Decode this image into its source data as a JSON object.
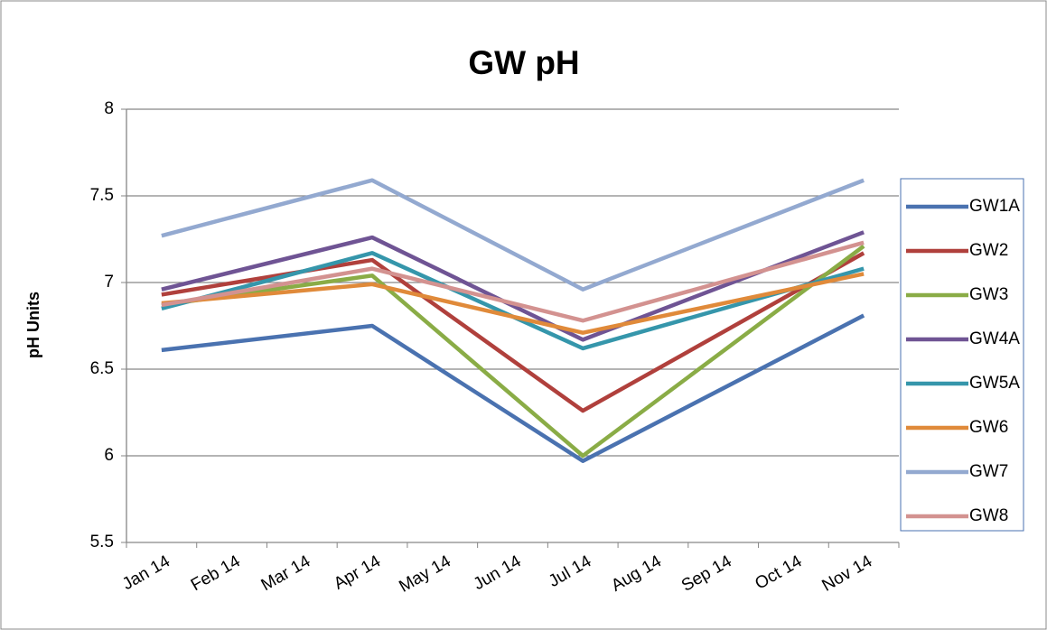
{
  "chart_data": {
    "type": "line",
    "title": "GW pH",
    "y_label": "pH Units",
    "categories": [
      "Jan 14",
      "Feb 14",
      "Mar 14",
      "Apr 14",
      "May 14",
      "Jun 14",
      "Jul 14",
      "Aug 14",
      "Sep 14",
      "Oct 14",
      "Nov 14"
    ],
    "ylim": [
      5.5,
      8
    ],
    "yticks": [
      5.5,
      6,
      6.5,
      7,
      7.5,
      8
    ],
    "grid": true,
    "legend": "right",
    "series": [
      {
        "name": "GW1A",
        "color": "#4a72b0",
        "x": [
          "Jan 14",
          "Apr 14",
          "Jul 14",
          "Nov 14"
        ],
        "values": [
          6.61,
          6.75,
          5.97,
          6.81
        ]
      },
      {
        "name": "GW2",
        "color": "#b0403c",
        "x": [
          "Jan 14",
          "Apr 14",
          "Jul 14",
          "Nov 14"
        ],
        "values": [
          6.93,
          7.13,
          6.26,
          7.17
        ]
      },
      {
        "name": "GW3",
        "color": "#8aac46",
        "x": [
          "Jan 14",
          "Apr 14",
          "Jul 14",
          "Nov 14"
        ],
        "values": [
          6.87,
          7.04,
          6.0,
          7.21
        ]
      },
      {
        "name": "GW4A",
        "color": "#6f5494",
        "x": [
          "Jan 14",
          "Apr 14",
          "Jul 14",
          "Nov 14"
        ],
        "values": [
          6.96,
          7.26,
          6.67,
          7.29
        ]
      },
      {
        "name": "GW5A",
        "color": "#3596ab",
        "x": [
          "Jan 14",
          "Apr 14",
          "Jul 14",
          "Nov 14"
        ],
        "values": [
          6.85,
          7.17,
          6.62,
          7.08
        ]
      },
      {
        "name": "GW6",
        "color": "#e08a3a",
        "x": [
          "Jan 14",
          "Apr 14",
          "Jul 14",
          "Nov 14"
        ],
        "values": [
          6.88,
          6.99,
          6.71,
          7.05
        ]
      },
      {
        "name": "GW7",
        "color": "#93a9d0",
        "x": [
          "Jan 14",
          "Apr 14",
          "Jul 14",
          "Nov 14"
        ],
        "values": [
          7.27,
          7.59,
          6.96,
          7.59
        ]
      },
      {
        "name": "GW8",
        "color": "#d39290",
        "x": [
          "Jan 14",
          "Apr 14",
          "Jul 14",
          "Nov 14"
        ],
        "values": [
          6.87,
          7.08,
          6.78,
          7.23
        ]
      }
    ]
  }
}
